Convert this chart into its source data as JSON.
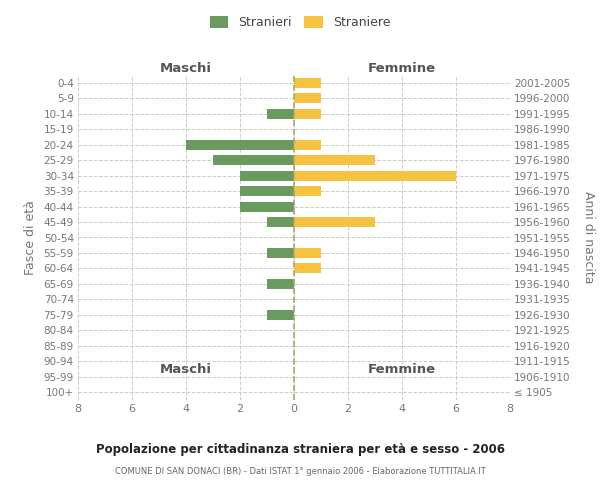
{
  "age_groups": [
    "100+",
    "95-99",
    "90-94",
    "85-89",
    "80-84",
    "75-79",
    "70-74",
    "65-69",
    "60-64",
    "55-59",
    "50-54",
    "45-49",
    "40-44",
    "35-39",
    "30-34",
    "25-29",
    "20-24",
    "15-19",
    "10-14",
    "5-9",
    "0-4"
  ],
  "birth_years": [
    "≤ 1905",
    "1906-1910",
    "1911-1915",
    "1916-1920",
    "1921-1925",
    "1926-1930",
    "1931-1935",
    "1936-1940",
    "1941-1945",
    "1946-1950",
    "1951-1955",
    "1956-1960",
    "1961-1965",
    "1966-1970",
    "1971-1975",
    "1976-1980",
    "1981-1985",
    "1986-1990",
    "1991-1995",
    "1996-2000",
    "2001-2005"
  ],
  "maschi": [
    0,
    0,
    0,
    0,
    0,
    1,
    0,
    1,
    0,
    1,
    0,
    1,
    2,
    2,
    2,
    3,
    4,
    0,
    1,
    0,
    0
  ],
  "femmine": [
    0,
    0,
    0,
    0,
    0,
    0,
    0,
    0,
    1,
    1,
    0,
    3,
    0,
    1,
    6,
    3,
    1,
    0,
    1,
    1,
    1
  ],
  "color_maschi": "#6a9a5e",
  "color_femmine": "#f5c242",
  "title": "Popolazione per cittadinanza straniera per età e sesso - 2006",
  "subtitle": "COMUNE DI SAN DONACI (BR) - Dati ISTAT 1° gennaio 2006 - Elaborazione TUTTITALIA.IT",
  "ylabel_left": "Fasce di età",
  "ylabel_right": "Anni di nascita",
  "xlabel_maschi": "Maschi",
  "xlabel_femmine": "Femmine",
  "legend_maschi": "Stranieri",
  "legend_femmine": "Straniere",
  "xlim": 8,
  "background_color": "#ffffff",
  "grid_color": "#cccccc",
  "fig_width": 6.0,
  "fig_height": 5.0,
  "dpi": 100
}
